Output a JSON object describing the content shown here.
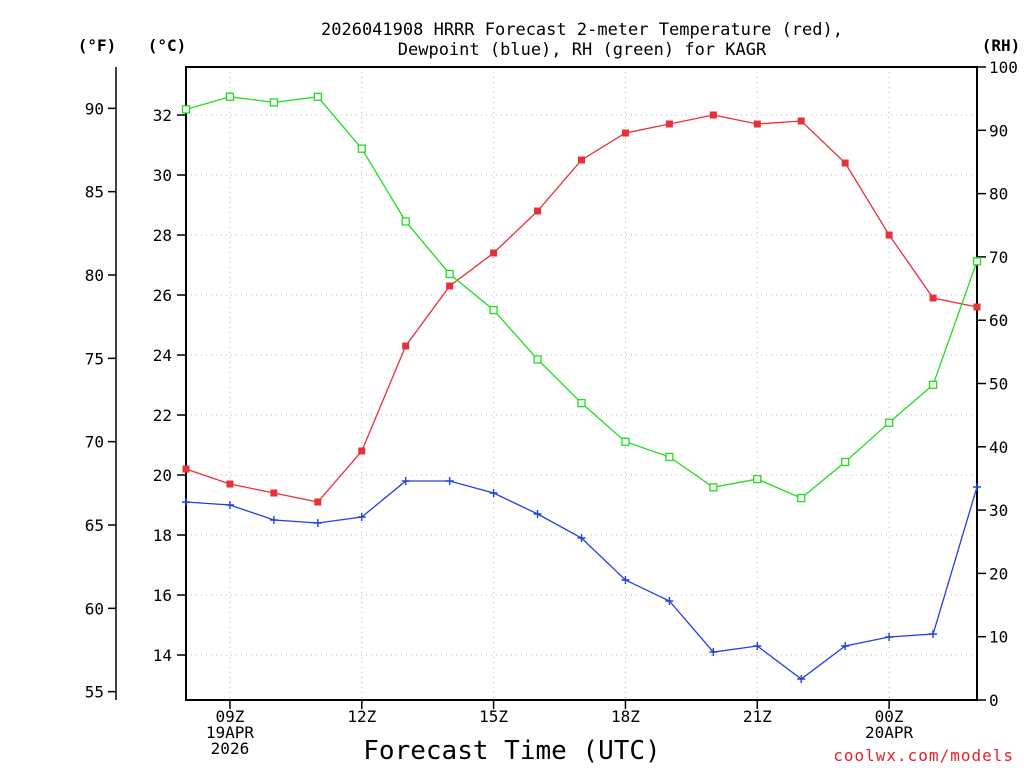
{
  "chart_data": {
    "type": "line",
    "title": [
      "2026041908 HRRR Forecast 2-meter Temperature (red),",
      "Dewpoint (blue), RH (green) for KAGR"
    ],
    "xlabel": "Forecast Time (UTC)",
    "credit": "coolwx.com/models",
    "units": {
      "fahrenheit": "(°F)",
      "celsius": "(°C)",
      "rh": "(RH)"
    },
    "hours": [
      8,
      9,
      10,
      11,
      12,
      13,
      14,
      15,
      16,
      17,
      18,
      19,
      20,
      21,
      22,
      23,
      24,
      25,
      26
    ],
    "xlim": [
      8,
      26
    ],
    "x_ticks": [
      {
        "hour": 9,
        "lines": [
          "09Z",
          "19APR",
          "2026"
        ]
      },
      {
        "hour": 12,
        "lines": [
          "12Z"
        ]
      },
      {
        "hour": 15,
        "lines": [
          "15Z"
        ]
      },
      {
        "hour": 18,
        "lines": [
          "18Z"
        ]
      },
      {
        "hour": 21,
        "lines": [
          "21Z"
        ]
      },
      {
        "hour": 24,
        "lines": [
          "00Z",
          "20APR"
        ]
      }
    ],
    "y_celsius": {
      "ylim": [
        12.5,
        33.6
      ],
      "ticks": [
        14,
        16,
        18,
        20,
        22,
        24,
        26,
        28,
        30,
        32
      ]
    },
    "y_fahrenheit": {
      "ticks": [
        55,
        60,
        65,
        70,
        75,
        80,
        85,
        90
      ]
    },
    "y_rh": {
      "ylim": [
        0,
        100
      ],
      "ticks": [
        0,
        10,
        20,
        30,
        40,
        50,
        60,
        70,
        80,
        90,
        100
      ]
    },
    "grid": true,
    "series": [
      {
        "name": "2-meter Temperature",
        "axis": "celsius",
        "color": "#e8303a",
        "marker": "filled-square",
        "values": [
          20.2,
          19.7,
          19.4,
          19.1,
          20.8,
          24.3,
          26.3,
          27.4,
          28.8,
          30.5,
          31.4,
          31.7,
          32.0,
          31.7,
          31.8,
          30.4,
          28.0,
          25.9,
          25.6
        ]
      },
      {
        "name": "Dewpoint",
        "axis": "celsius",
        "color": "#2040e0",
        "marker": "plus",
        "values": [
          19.1,
          19.0,
          18.5,
          18.4,
          18.6,
          19.8,
          19.8,
          19.4,
          18.7,
          17.9,
          16.5,
          15.8,
          14.1,
          14.3,
          13.2,
          14.3,
          14.6,
          14.7,
          19.6
        ]
      },
      {
        "name": "RH",
        "axis": "rh",
        "color": "#20dd20",
        "marker": "open-square",
        "values": [
          93.3,
          95.3,
          94.4,
          95.3,
          87.1,
          75.6,
          67.3,
          61.6,
          53.8,
          46.9,
          40.8,
          38.4,
          33.6,
          34.9,
          31.9,
          37.6,
          43.8,
          49.8,
          69.3
        ]
      }
    ]
  }
}
